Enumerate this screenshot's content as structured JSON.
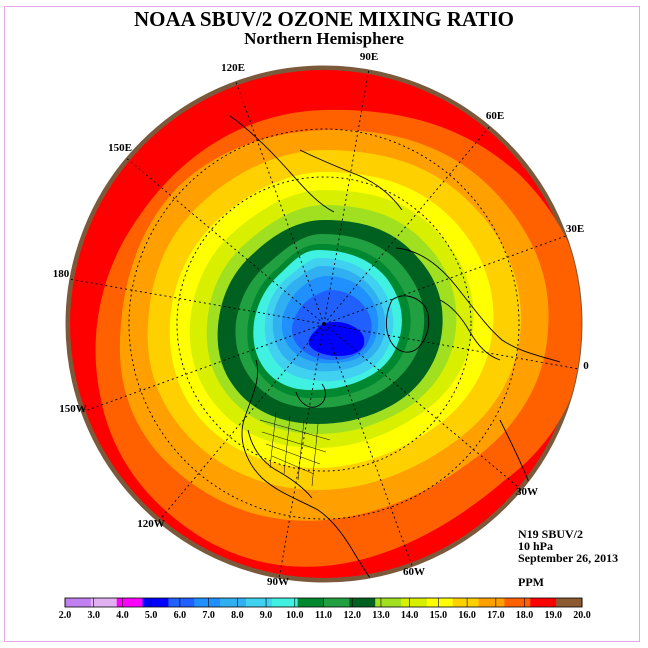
{
  "title": "NOAA SBUV/2 OZONE MIXING RATIO",
  "subtitle": "Northern Hemisphere",
  "longitude_labels": [
    "90E",
    "60E",
    "30E",
    "0",
    "30W",
    "60W",
    "90W",
    "120W",
    "150W",
    "180",
    "150E",
    "120E"
  ],
  "info": {
    "instrument": "N19 SBUV/2",
    "level": "10 hPa",
    "date": "September 26, 2013",
    "units": "PPM"
  },
  "colorbar": {
    "ticks": [
      "2.0",
      "3.0",
      "4.0",
      "5.0",
      "6.0",
      "7.0",
      "8.0",
      "9.0",
      "10.0",
      "11.0",
      "12.0",
      "13.0",
      "14.0",
      "15.0",
      "16.0",
      "17.0",
      "18.0",
      "19.0",
      "20.0"
    ],
    "colors": [
      "#c080f0",
      "#e0b0f0",
      "#ff00ff",
      "#0000ff",
      "#2060ff",
      "#2090ff",
      "#30b0f0",
      "#40d0f0",
      "#40f0e0",
      "#008830",
      "#20a040",
      "#006020",
      "#a0e020",
      "#d8f000",
      "#ffff00",
      "#ffd000",
      "#ffa000",
      "#ff6000",
      "#ff0000",
      "#8b5a30"
    ]
  },
  "colors": {
    "outer_rim": "#7b5a3c",
    "frame": "#e6a6e6"
  }
}
